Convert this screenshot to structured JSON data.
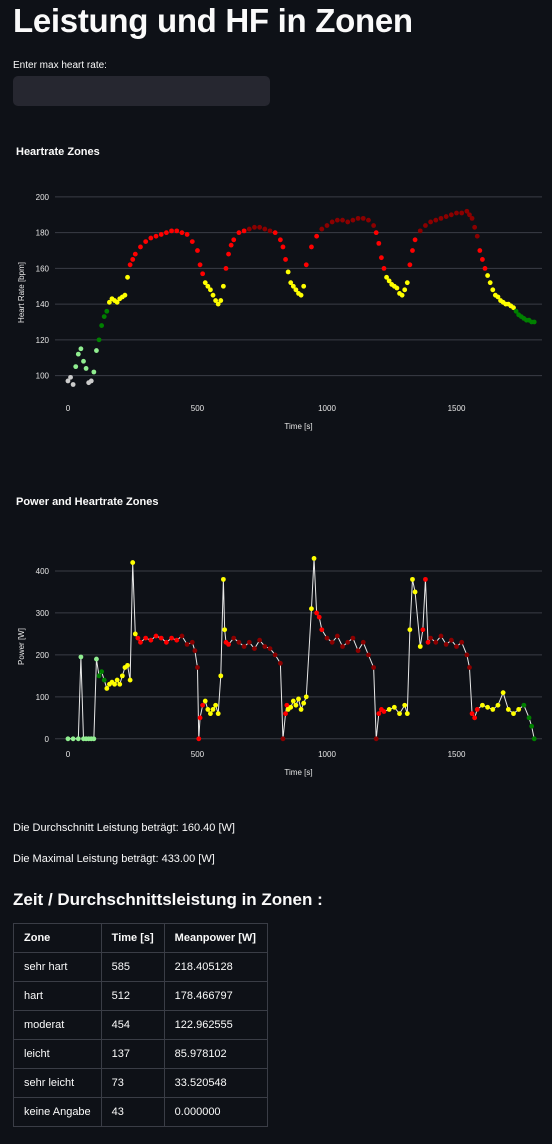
{
  "page": {
    "title": "Leistung und HF in Zonen",
    "input_label": "Enter max heart rate:",
    "input_value": "",
    "avg_text": "Die Durchschnitt Leistung beträgt: 160.40 [W]",
    "max_text": "Die Maximal Leistung beträgt: 433.00 [W]",
    "table_heading": "Zeit / Durchschnittsleistung in Zonen :"
  },
  "colors": {
    "background": "#0e1117",
    "keine Angabe": "#cccccc",
    "sehr leicht": "#90ee90",
    "leicht": "#008000",
    "moderat": "#ffff00",
    "hart": "#ff0000",
    "sehr hart": "#8b0000"
  },
  "chart_data": [
    {
      "type": "scatter",
      "title": "Heartrate Zones",
      "xlabel": "Time [s]",
      "ylabel": "Heart Rate [bpm]",
      "xlim": [
        -50,
        1830
      ],
      "ylim": [
        88,
        205
      ],
      "xticks": [
        0,
        500,
        1000,
        1500
      ],
      "yticks": [
        100,
        120,
        140,
        160,
        180,
        200
      ],
      "grid": true,
      "x": [
        0,
        10,
        20,
        30,
        40,
        50,
        60,
        70,
        80,
        90,
        100,
        110,
        120,
        130,
        140,
        150,
        160,
        170,
        180,
        190,
        200,
        210,
        220,
        230,
        240,
        250,
        260,
        280,
        300,
        320,
        340,
        360,
        380,
        400,
        420,
        440,
        460,
        480,
        500,
        510,
        520,
        530,
        540,
        550,
        560,
        570,
        580,
        590,
        600,
        610,
        620,
        630,
        640,
        660,
        680,
        700,
        720,
        740,
        760,
        780,
        800,
        820,
        830,
        840,
        850,
        860,
        870,
        880,
        890,
        900,
        910,
        920,
        940,
        960,
        980,
        1000,
        1020,
        1040,
        1060,
        1080,
        1100,
        1120,
        1140,
        1160,
        1180,
        1190,
        1200,
        1210,
        1220,
        1230,
        1240,
        1250,
        1260,
        1270,
        1280,
        1290,
        1300,
        1310,
        1320,
        1330,
        1340,
        1360,
        1380,
        1400,
        1420,
        1440,
        1460,
        1480,
        1500,
        1520,
        1540,
        1550,
        1560,
        1570,
        1580,
        1590,
        1600,
        1610,
        1620,
        1630,
        1640,
        1650,
        1660,
        1670,
        1680,
        1690,
        1700,
        1710,
        1720,
        1730,
        1740,
        1750,
        1760,
        1770,
        1780,
        1790,
        1800
      ],
      "y": [
        97,
        99,
        95,
        105,
        112,
        115,
        108,
        104,
        96,
        97,
        102,
        114,
        120,
        128,
        133,
        136,
        141,
        143,
        142,
        141,
        143,
        144,
        145,
        155,
        162,
        165,
        168,
        172,
        175,
        177,
        178,
        179,
        180,
        181,
        181,
        180,
        179,
        175,
        170,
        162,
        157,
        152,
        150,
        148,
        145,
        142,
        140,
        142,
        150,
        160,
        168,
        173,
        176,
        180,
        181,
        182,
        183,
        183,
        182,
        181,
        180,
        176,
        172,
        165,
        158,
        152,
        150,
        148,
        146,
        145,
        150,
        162,
        172,
        178,
        182,
        184,
        186,
        187,
        187,
        186,
        187,
        188,
        188,
        187,
        184,
        180,
        174,
        166,
        160,
        155,
        153,
        151,
        150,
        149,
        146,
        145,
        148,
        152,
        162,
        170,
        176,
        181,
        184,
        186,
        187,
        188,
        189,
        190,
        191,
        191,
        192,
        190,
        188,
        183,
        178,
        170,
        165,
        160,
        156,
        152,
        148,
        145,
        144,
        142,
        141,
        140,
        140,
        139,
        138,
        136,
        134,
        133,
        132,
        131,
        131,
        130,
        130
      ],
      "zones": [
        "keine Angabe",
        "keine Angabe",
        "keine Angabe",
        "sehr leicht",
        "sehr leicht",
        "sehr leicht",
        "sehr leicht",
        "sehr leicht",
        "keine Angabe",
        "keine Angabe",
        "sehr leicht",
        "sehr leicht",
        "leicht",
        "leicht",
        "leicht",
        "leicht",
        "moderat",
        "moderat",
        "moderat",
        "moderat",
        "moderat",
        "moderat",
        "moderat",
        "moderat",
        "hart",
        "hart",
        "hart",
        "hart",
        "hart",
        "hart",
        "hart",
        "hart",
        "hart",
        "hart",
        "hart",
        "hart",
        "hart",
        "hart",
        "hart",
        "hart",
        "hart",
        "moderat",
        "moderat",
        "moderat",
        "moderat",
        "moderat",
        "moderat",
        "moderat",
        "moderat",
        "hart",
        "hart",
        "hart",
        "hart",
        "hart",
        "hart",
        "sehr hart",
        "sehr hart",
        "sehr hart",
        "sehr hart",
        "sehr hart",
        "hart",
        "hart",
        "hart",
        "hart",
        "moderat",
        "moderat",
        "moderat",
        "moderat",
        "moderat",
        "moderat",
        "moderat",
        "hart",
        "hart",
        "hart",
        "sehr hart",
        "sehr hart",
        "sehr hart",
        "sehr hart",
        "sehr hart",
        "sehr hart",
        "sehr hart",
        "sehr hart",
        "sehr hart",
        "sehr hart",
        "sehr hart",
        "hart",
        "hart",
        "hart",
        "hart",
        "moderat",
        "moderat",
        "moderat",
        "moderat",
        "moderat",
        "moderat",
        "moderat",
        "moderat",
        "moderat",
        "hart",
        "hart",
        "hart",
        "sehr hart",
        "sehr hart",
        "sehr hart",
        "sehr hart",
        "sehr hart",
        "sehr hart",
        "sehr hart",
        "sehr hart",
        "sehr hart",
        "sehr hart",
        "sehr hart",
        "sehr hart",
        "sehr hart",
        "sehr hart",
        "hart",
        "hart",
        "hart",
        "moderat",
        "moderat",
        "moderat",
        "moderat",
        "moderat",
        "moderat",
        "moderat",
        "moderat",
        "moderat",
        "moderat",
        "moderat",
        "leicht",
        "leicht",
        "leicht",
        "leicht",
        "leicht",
        "leicht",
        "leicht",
        "leicht",
        "leicht"
      ]
    },
    {
      "type": "scatter",
      "title": "Power and Heartrate Zones",
      "xlabel": "Time [s]",
      "ylabel": "Power [W]",
      "xlim": [
        -50,
        1830
      ],
      "ylim": [
        -10,
        450
      ],
      "xticks": [
        0,
        500,
        1000,
        1500
      ],
      "yticks": [
        0,
        100,
        200,
        300,
        400
      ],
      "grid": true,
      "x": [
        0,
        20,
        40,
        50,
        60,
        70,
        80,
        90,
        100,
        110,
        120,
        130,
        140,
        150,
        160,
        170,
        180,
        190,
        200,
        210,
        220,
        230,
        240,
        250,
        260,
        270,
        280,
        300,
        320,
        340,
        360,
        380,
        400,
        420,
        440,
        460,
        480,
        490,
        500,
        505,
        510,
        520,
        530,
        540,
        550,
        560,
        570,
        580,
        590,
        600,
        605,
        610,
        620,
        640,
        660,
        680,
        700,
        720,
        740,
        760,
        780,
        800,
        820,
        830,
        840,
        845,
        850,
        860,
        870,
        880,
        890,
        900,
        910,
        920,
        940,
        950,
        960,
        970,
        980,
        1000,
        1020,
        1040,
        1060,
        1080,
        1100,
        1120,
        1140,
        1160,
        1180,
        1190,
        1200,
        1210,
        1220,
        1240,
        1260,
        1280,
        1300,
        1310,
        1320,
        1330,
        1340,
        1360,
        1370,
        1380,
        1390,
        1400,
        1420,
        1440,
        1460,
        1480,
        1500,
        1520,
        1540,
        1550,
        1560,
        1570,
        1580,
        1600,
        1620,
        1640,
        1660,
        1680,
        1700,
        1720,
        1740,
        1760,
        1780,
        1790,
        1800
      ],
      "y": [
        0,
        0,
        0,
        195,
        0,
        0,
        0,
        0,
        0,
        190,
        150,
        160,
        140,
        120,
        130,
        135,
        130,
        140,
        130,
        150,
        170,
        175,
        140,
        420,
        250,
        240,
        230,
        240,
        235,
        245,
        240,
        230,
        240,
        235,
        245,
        225,
        230,
        210,
        170,
        0,
        50,
        80,
        90,
        70,
        60,
        70,
        80,
        60,
        150,
        380,
        260,
        230,
        225,
        240,
        230,
        220,
        230,
        215,
        235,
        220,
        215,
        200,
        180,
        0,
        60,
        80,
        70,
        75,
        90,
        80,
        95,
        70,
        85,
        100,
        310,
        430,
        300,
        290,
        260,
        240,
        230,
        245,
        220,
        230,
        240,
        210,
        230,
        200,
        170,
        0,
        60,
        70,
        65,
        70,
        75,
        60,
        80,
        60,
        260,
        380,
        350,
        220,
        260,
        380,
        230,
        240,
        230,
        245,
        225,
        235,
        220,
        230,
        200,
        170,
        60,
        50,
        70,
        80,
        75,
        70,
        80,
        110,
        70,
        60,
        70,
        80,
        50,
        30,
        0
      ],
      "zones": [
        "sehr leicht",
        "sehr leicht",
        "sehr leicht",
        "sehr leicht",
        "sehr leicht",
        "sehr leicht",
        "sehr leicht",
        "sehr leicht",
        "sehr leicht",
        "sehr leicht",
        "leicht",
        "leicht",
        "leicht",
        "moderat",
        "moderat",
        "moderat",
        "moderat",
        "moderat",
        "moderat",
        "moderat",
        "moderat",
        "moderat",
        "moderat",
        "moderat",
        "moderat",
        "hart",
        "hart",
        "hart",
        "hart",
        "hart",
        "hart",
        "hart",
        "hart",
        "hart",
        "sehr hart",
        "sehr hart",
        "sehr hart",
        "sehr hart",
        "sehr hart",
        "hart",
        "hart",
        "hart",
        "moderat",
        "moderat",
        "moderat",
        "moderat",
        "moderat",
        "moderat",
        "moderat",
        "moderat",
        "moderat",
        "hart",
        "hart",
        "sehr hart",
        "sehr hart",
        "sehr hart",
        "sehr hart",
        "sehr hart",
        "sehr hart",
        "sehr hart",
        "sehr hart",
        "sehr hart",
        "sehr hart",
        "sehr hart",
        "hart",
        "hart",
        "moderat",
        "moderat",
        "moderat",
        "moderat",
        "moderat",
        "moderat",
        "moderat",
        "moderat",
        "moderat",
        "moderat",
        "hart",
        "hart",
        "hart",
        "sehr hart",
        "sehr hart",
        "sehr hart",
        "sehr hart",
        "sehr hart",
        "sehr hart",
        "sehr hart",
        "sehr hart",
        "sehr hart",
        "sehr hart",
        "sehr hart",
        "hart",
        "hart",
        "hart",
        "moderat",
        "moderat",
        "moderat",
        "moderat",
        "moderat",
        "moderat",
        "moderat",
        "moderat",
        "moderat",
        "hart",
        "hart",
        "hart",
        "sehr hart",
        "sehr hart",
        "sehr hart",
        "sehr hart",
        "sehr hart",
        "sehr hart",
        "sehr hart",
        "sehr hart",
        "sehr hart",
        "hart",
        "hart",
        "hart",
        "moderat",
        "moderat",
        "moderat",
        "moderat",
        "moderat",
        "moderat",
        "moderat",
        "moderat",
        "leicht",
        "leicht",
        "leicht",
        "leicht",
        "leicht",
        "leicht"
      ]
    },
    {
      "type": "table",
      "columns": [
        "Zone",
        "Time [s]",
        "Meanpower [W]"
      ],
      "rows": [
        [
          "sehr hart",
          "585",
          "218.405128"
        ],
        [
          "hart",
          "512",
          "178.466797"
        ],
        [
          "moderat",
          "454",
          "122.962555"
        ],
        [
          "leicht",
          "137",
          "85.978102"
        ],
        [
          "sehr leicht",
          "73",
          "33.520548"
        ],
        [
          "keine Angabe",
          "43",
          "0.000000"
        ]
      ]
    }
  ]
}
